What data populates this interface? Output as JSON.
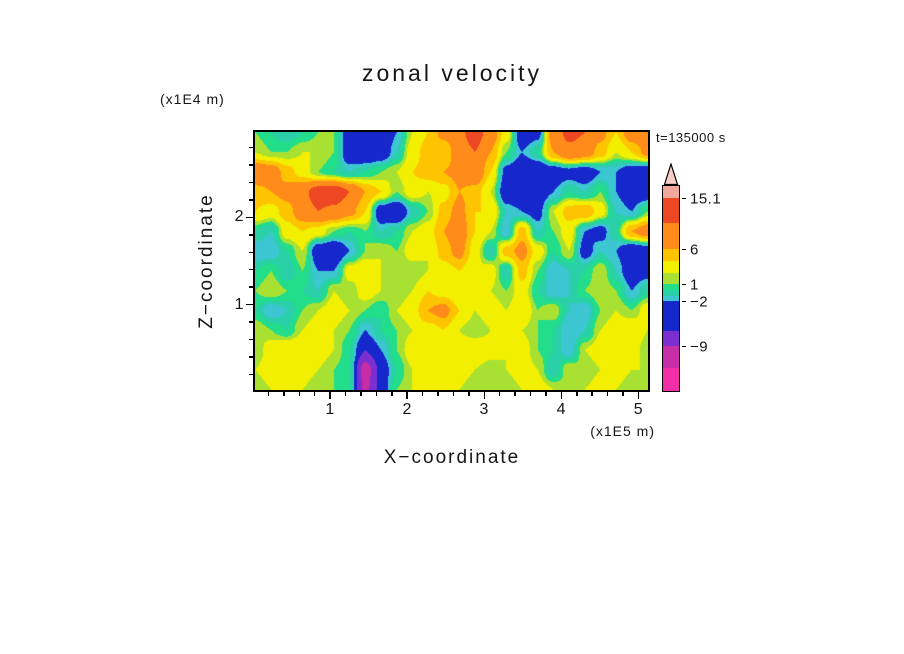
{
  "header": {
    "title": "zonal velocity",
    "timestamp": "t=135000 s"
  },
  "chart_data": {
    "type": "heatmap",
    "title": "zonal velocity",
    "time_label": "t=135000 s",
    "xlabel": "X−coordinate",
    "x_units": "(x1E5 m)",
    "ylabel": "Z−coordinate",
    "y_units": "(x1E4 m)",
    "x_range": [
      0,
      5.15
    ],
    "z_range": [
      0,
      3.0
    ],
    "x_ticks": [
      1,
      2,
      3,
      4,
      5
    ],
    "z_ticks": [
      1,
      2
    ],
    "x_minor_step": 0.2,
    "z_minor_step": 0.2,
    "legend_position": "right-colorbar-with-overflow-arrow",
    "colorbar_tick_labels": [
      "15.1",
      "6",
      "1",
      "−2",
      "−9"
    ],
    "colormap": {
      "thresholds": [
        -13,
        -9,
        -5,
        -2,
        -1,
        0,
        1,
        2,
        4,
        6,
        10,
        15.1
      ],
      "colors": [
        "#f12fa6",
        "#c62da6",
        "#7b2fd0",
        "#1628cc",
        "#3cc6d2",
        "#2ad0a8",
        "#22dd8a",
        "#a8e132",
        "#f2ef00",
        "#ffc400",
        "#ff8c1a",
        "#ee4723",
        "#f2a79e"
      ]
    },
    "grid": {
      "nx": 26,
      "nz": 14,
      "order": "rows from top (z=3.0) to bottom (z=0.0); columns from left (x=0) to right (x=5.15); values are estimated zonal velocity",
      "values": [
        [
          1,
          0,
          -1,
          0,
          1,
          1,
          -4,
          -5,
          -5,
          -2,
          2,
          4,
          7,
          9,
          12,
          8,
          3,
          -4,
          -3,
          8,
          11,
          10,
          7,
          4,
          8,
          10
        ],
        [
          2,
          1,
          1,
          2,
          2,
          1,
          -4,
          -5,
          -4,
          -1,
          3,
          5,
          4,
          8,
          10,
          6,
          1,
          -2,
          0,
          6,
          9,
          8,
          5,
          2,
          4,
          7
        ],
        [
          9,
          8,
          5,
          3,
          1,
          0,
          -1,
          0,
          1,
          2,
          4,
          5,
          6,
          7,
          9,
          4,
          -3,
          -5,
          -5,
          -4,
          -3,
          -4,
          -2,
          -2,
          -4,
          -5
        ],
        [
          5,
          6,
          7,
          9,
          12,
          13,
          10,
          6,
          4,
          1,
          3,
          2,
          3,
          6,
          5,
          2,
          -4,
          -5,
          -4,
          -2,
          0,
          -1,
          1,
          -2,
          -4,
          -4
        ],
        [
          4,
          3,
          5,
          8,
          10,
          9,
          7,
          4,
          -4,
          -5,
          -1,
          1,
          5,
          7,
          4,
          4,
          -1,
          -2,
          -3,
          2,
          5,
          6,
          3,
          -1,
          -2,
          1
        ],
        [
          0,
          -1,
          3,
          4,
          3,
          1,
          0,
          1,
          -1,
          0,
          2,
          3,
          6,
          8,
          4,
          2,
          -2,
          5,
          -1,
          1,
          3,
          -2,
          -3,
          0,
          6,
          8
        ],
        [
          -2,
          -2,
          0,
          2,
          -4,
          -5,
          -2,
          1,
          2,
          1,
          3,
          2,
          5,
          7,
          3,
          -1,
          5,
          7,
          3,
          0,
          2,
          -3,
          -1,
          -2,
          -5,
          -4
        ],
        [
          0,
          1,
          -1,
          1,
          -2,
          -2,
          3,
          4,
          2,
          1,
          1,
          2,
          3,
          4,
          2,
          3,
          -1,
          5,
          1,
          -2,
          -1,
          0,
          2,
          -1,
          -4,
          -3
        ],
        [
          1,
          2,
          1,
          0,
          -1,
          2,
          1,
          3,
          2,
          1,
          2,
          4,
          3,
          2,
          4,
          2,
          1,
          3,
          0,
          -2,
          -1,
          1,
          2,
          1,
          -2,
          0
        ],
        [
          0,
          -2,
          -1,
          1,
          2,
          3,
          2,
          1,
          0,
          2,
          3,
          6,
          7,
          4,
          2,
          3,
          2,
          4,
          1,
          2,
          -1,
          -2,
          1,
          2,
          1,
          3
        ],
        [
          2,
          1,
          0,
          2,
          3,
          2,
          1,
          -2,
          0,
          1,
          2,
          3,
          4,
          2,
          1,
          2,
          3,
          2,
          1,
          0,
          -2,
          -1,
          2,
          3,
          4,
          2
        ],
        [
          1,
          3,
          4,
          4,
          3,
          2,
          0,
          -5,
          -2,
          1,
          3,
          4,
          2,
          3,
          4,
          3,
          2,
          3,
          1,
          0,
          -2,
          2,
          3,
          4,
          3,
          1
        ],
        [
          2,
          3,
          4,
          3,
          2,
          1,
          0,
          -11,
          -4,
          0,
          2,
          3,
          2,
          3,
          2,
          1,
          2,
          3,
          2,
          -1,
          2,
          1,
          2,
          3,
          2,
          2
        ],
        [
          1,
          2,
          3,
          2,
          1,
          1,
          0,
          -10,
          -4,
          1,
          2,
          3,
          2,
          2,
          1,
          2,
          1,
          2,
          3,
          2,
          1,
          2,
          3,
          2,
          1,
          1
        ]
      ]
    }
  },
  "colorbar": {
    "arrow_color": "#f7cfc4",
    "bands": [
      {
        "color": "#f2a79e",
        "h": 12,
        "label": "15.1"
      },
      {
        "color": "#ee4723",
        "h": 25
      },
      {
        "color": "#ff8c1a",
        "h": 26,
        "label": "6"
      },
      {
        "color": "#ffc400",
        "h": 12
      },
      {
        "color": "#f2ef00",
        "h": 12
      },
      {
        "color": "#a8e132",
        "h": 11,
        "label": "1"
      },
      {
        "color": "#22dd8a",
        "h": 6
      },
      {
        "color": "#2ad0a8",
        "h": 6
      },
      {
        "color": "#3cc6d2",
        "h": 5,
        "label": "−2"
      },
      {
        "color": "#1628cc",
        "h": 30
      },
      {
        "color": "#7b2fd0",
        "h": 15,
        "label": "−9"
      },
      {
        "color": "#c62da6",
        "h": 22
      },
      {
        "color": "#f12fa6",
        "h": 23
      }
    ]
  }
}
